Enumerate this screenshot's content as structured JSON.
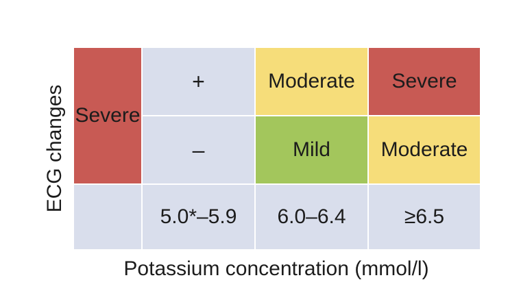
{
  "y_axis_label": "ECG changes",
  "x_axis_label": "Potassium concentration (mmol/l)",
  "rows": {
    "plus_label": "+",
    "minus_label": "–"
  },
  "columns": {
    "range_1": "5.0*–5.9",
    "range_2": "6.0–6.4",
    "range_3": "≥6.5"
  },
  "cells": {
    "plus_range_1": "Moderate",
    "plus_range_2": "Severe",
    "minus_range_1": "Mild",
    "minus_range_2": "Moderate",
    "range_3_both": "Severe"
  },
  "colors": {
    "mild": "#a3c65c",
    "moderate": "#f6dd7a",
    "severe": "#c85a54",
    "axis_cell": "#d9deec"
  }
}
